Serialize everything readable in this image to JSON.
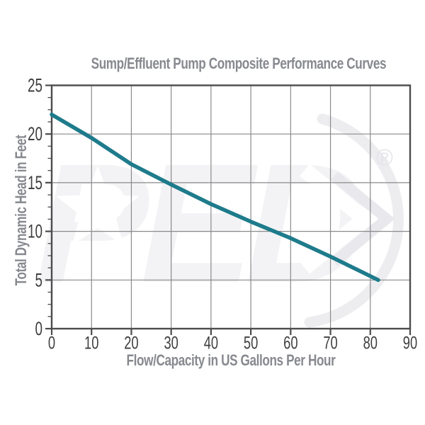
{
  "chart_data": {
    "type": "line",
    "title": "Sump/Effluent Pump Composite Performance Curves",
    "xlabel": "Flow/Capacity in US Gallons Per Hour",
    "ylabel": "Total Dynamic Head in Feet",
    "xlim": [
      0,
      90
    ],
    "ylim": [
      0,
      25
    ],
    "x_ticks": [
      0,
      10,
      20,
      30,
      40,
      50,
      60,
      70,
      80,
      90
    ],
    "y_ticks": [
      0,
      5,
      10,
      15,
      20,
      25
    ],
    "y_minor_subdivisions": 4,
    "grid": true,
    "legend": false,
    "series": [
      {
        "color": "#1e7b8b",
        "points": [
          [
            0,
            22
          ],
          [
            10,
            19.6
          ],
          [
            20,
            16.9
          ],
          [
            30,
            14.8
          ],
          [
            40,
            12.8
          ],
          [
            50,
            11.0
          ],
          [
            60,
            9.3
          ],
          [
            70,
            7.4
          ],
          [
            82,
            5.0
          ]
        ]
      }
    ]
  },
  "watermark": {
    "text": "PED",
    "registered_symbol": "®",
    "letters_color": "#f3f3f5",
    "swoosh_color": "#ededf0",
    "star_color": "#ffffff",
    "arrow_white": "#ffffff",
    "arrow_gray": "#e9e9ed",
    "registered_color": "#e4e4e8"
  },
  "colors": {
    "background": "#ffffff",
    "title": "#87898f",
    "axis_titles": "#87898f",
    "tick_labels": "#3e3e40",
    "grid": "#8a8a8a",
    "axis_frame": "#4c4c4e",
    "curve": "#1e7b8b"
  }
}
